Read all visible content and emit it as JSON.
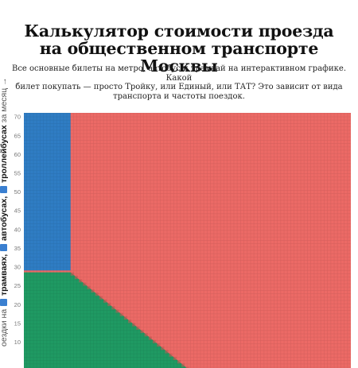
{
  "page": {
    "title_line1": "Калькулятор стоимости проезда",
    "title_line2": "на общественном транспорте Москвы",
    "subtitle_line1": "Все основные билеты на метро, автобус и трамвай на интерактивном графике. Какой",
    "subtitle_line2": "билет покупать — просто Тройку, или Единый, или ТАТ? Это зависит от вида",
    "subtitle_line3": "транспорта и частоты поездок."
  },
  "colors": {
    "blue": "#2f7dc4",
    "red": "#ec6a66",
    "green": "#1f9a63",
    "icon": "#3a7fd0"
  },
  "y_axis_label": {
    "prefix": "оездки на ",
    "bold1": "трамваях,",
    "bold2": "автобусах,",
    "bold3": "троллейбусах",
    "suffix": " за месяц →"
  },
  "chart_data": {
    "type": "heatmap",
    "y_ticks": [
      10,
      15,
      20,
      25,
      30,
      35,
      40,
      45,
      50,
      55,
      60,
      65,
      70
    ],
    "ylim": [
      3,
      71
    ],
    "xlim": [
      0,
      70
    ],
    "grid": true,
    "regions": [
      {
        "color": "blue",
        "x_max": 10,
        "y_min": 29
      },
      {
        "color": "green",
        "boundary_x_at_y": [
          [
            28.5,
            10
          ],
          [
            7,
            31
          ]
        ]
      },
      {
        "color": "red",
        "note": ""
      }
    ]
  }
}
